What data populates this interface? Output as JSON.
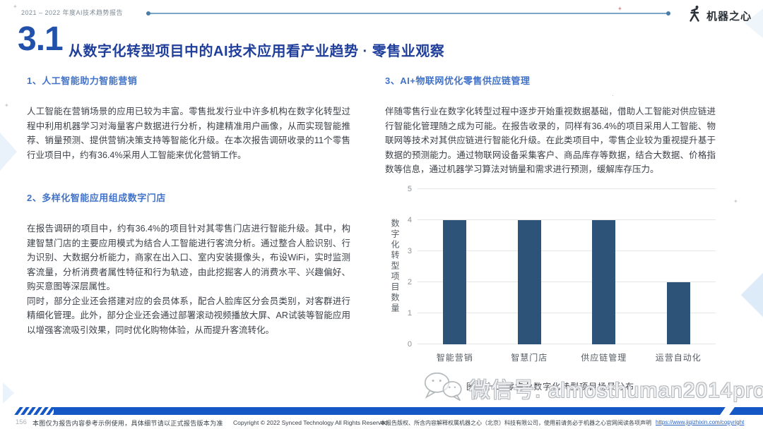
{
  "page": {
    "report_label": "2021 – 2022 年度AI技术趋势报告",
    "brand_name": "机器之心",
    "section_number": "3.1",
    "section_title": "从数字化转型项目中的AI技术应用看产业趋势 · 零售业观察"
  },
  "sections": [
    {
      "heading": "1、人工智能助力智能营销",
      "paragraphs": [
        "人工智能在营销场景的应用已较为丰富。零售批发行业中许多机构在数字化转型过程中利用机器学习对海量客户数据进行分析，构建精准用户画像，从而实现智能推荐、销量预测、提供营销决策支持等智能化升级。在本次报告调研收录的11个零售行业项目中，约有36.4%采用人工智能来优化营销工作。"
      ]
    },
    {
      "heading": "2、多样化智能应用组成数字门店",
      "paragraphs": [
        "在报告调研的项目中，约有36.4%的项目针对其零售门店进行智能升级。其中，构建智慧门店的主要应用模式为结合人工智能进行客流分析。通过整合人脸识别、行为识别、大数据分析能力，商家在出入口、室内安装摄像头，布设WiFi，实时监测客流量，分析消费者属性特征和行为轨迹，由此挖掘客人的消费水平、兴趣偏好、购买意图等深层属性。",
        "同时，部分企业还会搭建对应的会员体系，配合人脸库区分会员类别，对客群进行精细化管理。此外，部分企业还会通过部署滚动视频播放大屏、AR试装等智能应用以增强客流吸引效果，同时优化购物体验，从而提升客流转化。"
      ]
    },
    {
      "heading": "3、AI+物联网优化零售供应链管理",
      "paragraphs": [
        "伴随零售行业在数字化转型过程中逐步开始重视数据基础，借助人工智能对供应链进行智能化管理随之成为可能。在报告收录的，同样有36.4%的项目采用人工智能、物联网等技术对其供应链进行智能化升级。在此类项目中，零售企业较为重视提升基于数据的预测能力。通过物联网设备采集客户、商品库存等数据，结合大数据、价格指数等信息，通过机器学习算法对销量和需求进行预测，缓解库存压力。"
      ]
    }
  ],
  "chart_data": {
    "type": "bar",
    "categories": [
      "智能营销",
      "智慧门店",
      "供应链管理",
      "运营自动化"
    ],
    "values": [
      4,
      4,
      4,
      2
    ],
    "title": "图三十二 零售业数字化转型项目场景分布",
    "xlabel": "",
    "ylabel": "数字化转型项目数量",
    "ylim": [
      0,
      5
    ],
    "yticks": [
      0,
      1,
      2,
      3,
      4,
      5
    ],
    "grid": true,
    "legend": false,
    "bar_color": "#2d5379"
  },
  "watermark": {
    "icon": "wechat-icon",
    "text": "微信号: almosthuman2014pro"
  },
  "footer": {
    "page_number": "156",
    "note": "本图仅为报告内容参考示例使用，具体细节请以正式报告版本为准",
    "copyright": "Copyright © 2022 Synced Technology All Rights Reserved",
    "rights_note": "本报告版权、所含内容解释权属机器之心（北京）科技有限公司，使用前请务必于机器之心官网阅读各项声明",
    "link": "https://www.jiqizhixin.com/copyright"
  },
  "colors": {
    "accent_blue": "#2251ac",
    "title_blue": "#203f9b",
    "heading_blue": "#4273c8",
    "bar_color": "#2d5379",
    "footer_bar_blue": "#1557c5",
    "link_blue": "#2a62c0"
  },
  "icons": [
    "synced-logo-icon",
    "wechat-icon"
  ]
}
